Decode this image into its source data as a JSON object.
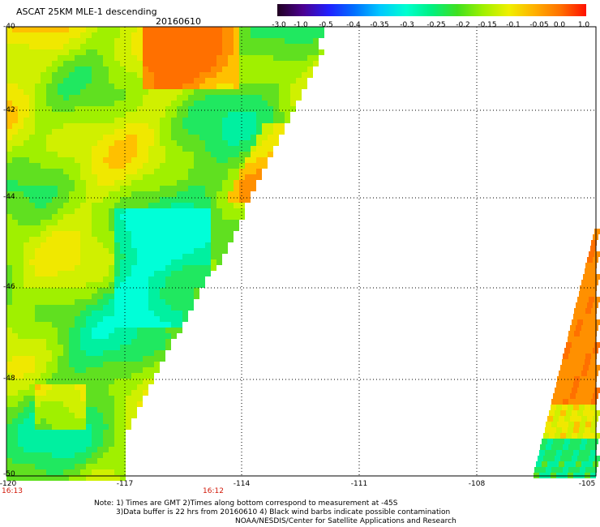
{
  "header": {
    "title": "ASCAT 25KM MLE-1 descending",
    "date": "20160610"
  },
  "colorbar": {
    "labels": [
      "-3.0",
      "-1.0",
      "-0.5",
      "-0.4",
      "-0.35",
      "-0.3",
      "-0.25",
      "-0.2",
      "-0.15",
      "-0.1",
      "-0.05",
      "0.0",
      "1.0"
    ],
    "colors": [
      "#200020",
      "#4b0090",
      "#2020ff",
      "#0070ff",
      "#00c8ff",
      "#00ffd0",
      "#00f080",
      "#40e020",
      "#a0f000",
      "#f0f000",
      "#ffb000",
      "#ff7000",
      "#ff1000"
    ]
  },
  "map": {
    "lat_labels": [
      "-40",
      "-42",
      "-44",
      "-46",
      "-48",
      "-50"
    ],
    "lon_labels": [
      "-120",
      "-117",
      "-114",
      "-111",
      "-108",
      "-105"
    ],
    "lat_range": [
      -50,
      -40
    ],
    "lon_range": [
      -120,
      -105
    ],
    "grid": true,
    "times": [
      {
        "label": "16:13",
        "lon": -120
      },
      {
        "label": "16:12",
        "lon": -114.5
      }
    ]
  },
  "notes": {
    "line1": "Note: 1) Times are GMT 2)Times along bottom correspond to measurement at -45S",
    "line2": "3)Data buffer is 22 hrs from 20160610 4) Black wind barbs indicate possible contamination",
    "line3": "NOAA/NESDIS/Center for Satellite Applications and Research"
  }
}
